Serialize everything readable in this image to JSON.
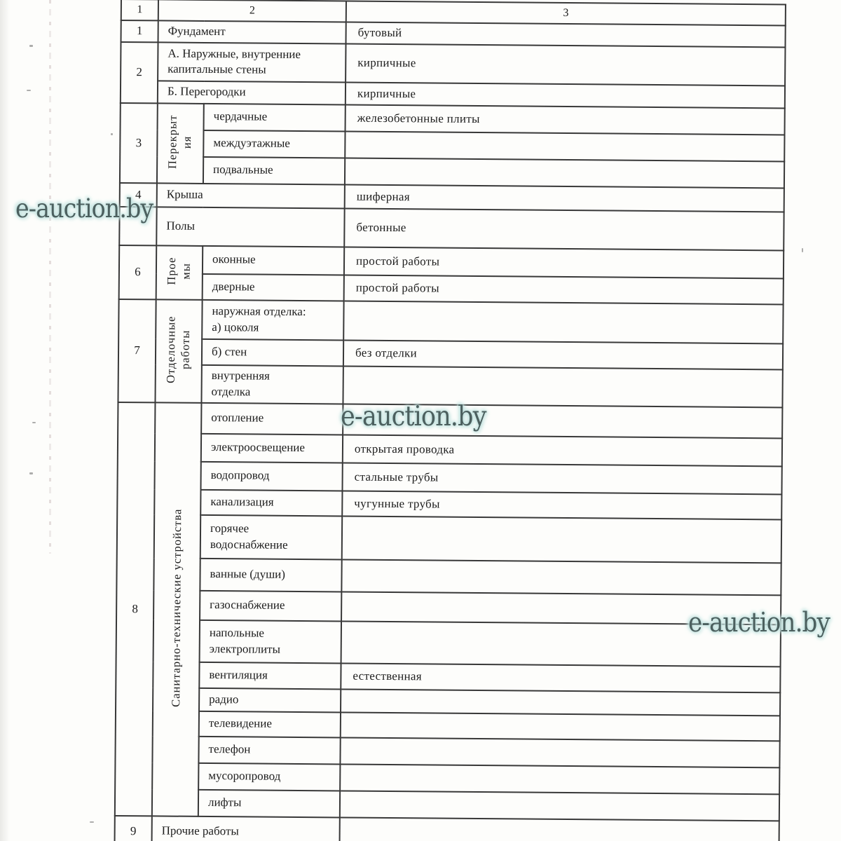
{
  "watermark": {
    "text": "e-auction.by",
    "ink_color": "#4c605f",
    "glow_color": "#bedfdc"
  },
  "table": {
    "header": [
      "1",
      "2",
      "3"
    ],
    "rows": [
      {
        "num": "1",
        "label": "Фундамент",
        "value": "бутовый"
      },
      {
        "num": "2",
        "items": [
          {
            "label": "А. Наружные, внутренние\nкапитальные стены",
            "value": "кирпичные"
          },
          {
            "label": "Б. Перегородки",
            "value": "кирпичные"
          }
        ]
      },
      {
        "num": "3",
        "group": "Перекрыт\nия",
        "items": [
          {
            "label": "чердачные",
            "value": "железобетонные плиты"
          },
          {
            "label": "междуэтажные",
            "value": ""
          },
          {
            "label": "подвальные",
            "value": ""
          }
        ]
      },
      {
        "num": "4",
        "label": "Крыша",
        "value": "шиферная"
      },
      {
        "num": "",
        "label": "Полы",
        "value": "бетонные"
      },
      {
        "num": "6",
        "group": "Прое\nмы",
        "items": [
          {
            "label": "оконные",
            "value": "простой работы"
          },
          {
            "label": "дверные",
            "value": "простой работы"
          }
        ]
      },
      {
        "num": "7",
        "group": "Отделочные\nработы",
        "items": [
          {
            "label": "наружная отделка:\nа) цоколя",
            "value": ""
          },
          {
            "label": "б) стен",
            "value": "без  отделки"
          },
          {
            "label": "внутренняя\nотделка",
            "value": ""
          }
        ]
      },
      {
        "num": "8",
        "group": "Санитарно-технические устройства",
        "items": [
          {
            "label": "отопление",
            "value": ""
          },
          {
            "label": "электроосвещение",
            "value": "открытая  проводка"
          },
          {
            "label": "водопровод",
            "value": "стальные  трубы"
          },
          {
            "label": "канализация",
            "value": "чугунные трубы"
          },
          {
            "label": "горячее\nводоснабжение",
            "value": ""
          },
          {
            "label": "ванные (души)",
            "value": ""
          },
          {
            "label": "газоснабжение",
            "value": ""
          },
          {
            "label": "напольные\nэлектроплиты",
            "value": ""
          },
          {
            "label": "вентиляция",
            "value": "естественная"
          },
          {
            "label": "радио",
            "value": ""
          },
          {
            "label": "телевидение",
            "value": ""
          },
          {
            "label": "телефон",
            "value": ""
          },
          {
            "label": "мусоропровод",
            "value": ""
          },
          {
            "label": "лифты",
            "value": ""
          }
        ]
      },
      {
        "num": "9",
        "label": "Прочие работы",
        "value": ""
      }
    ]
  }
}
